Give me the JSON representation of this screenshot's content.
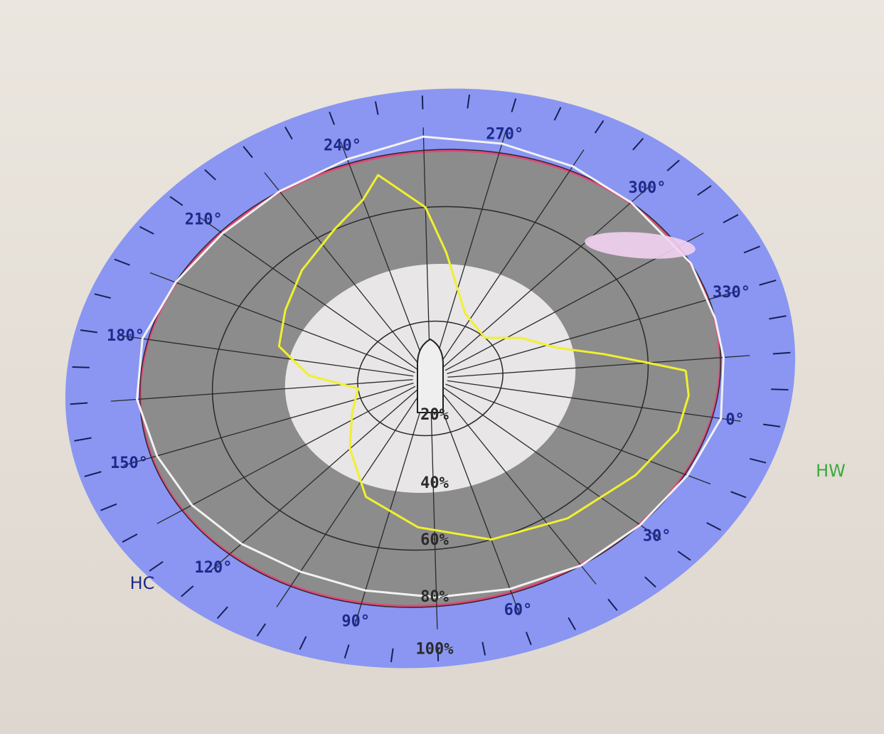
{
  "colors": {
    "background": "#e6e0d8",
    "outer_ring": "#8a96f2",
    "gray_ring": "#8c8c8c",
    "inner_disk": "#e8e6e6",
    "gridline": "#2a2a2a",
    "pink_circle": "#e0487a",
    "white_trace": "#f2f2f2",
    "yellow_trace": "#f0f030",
    "angle_label": "#1d2a8a",
    "hc_label": "#1d2a8a",
    "hw_label": "#3caa3c"
  },
  "angle_labels": [
    {
      "text": "0°",
      "angle": 0
    },
    {
      "text": "30°",
      "angle": 30
    },
    {
      "text": "60°",
      "angle": 60
    },
    {
      "text": "90°",
      "angle": 90
    },
    {
      "text": "120°",
      "angle": 120
    },
    {
      "text": "150°",
      "angle": 150
    },
    {
      "text": "180°",
      "angle": 180
    },
    {
      "text": "210°",
      "angle": 210
    },
    {
      "text": "240°",
      "angle": 240
    },
    {
      "text": "270°",
      "angle": 270
    },
    {
      "text": "300°",
      "angle": 300
    },
    {
      "text": "330°",
      "angle": 330
    }
  ],
  "percent_labels": [
    "20%",
    "40%",
    "60%",
    "80%",
    "100%"
  ],
  "side_labels": {
    "left": "HC",
    "right": "HW"
  },
  "traces": {
    "white": {
      "name": "",
      "points_deg_pct": [
        [
          335,
          100
        ],
        [
          320,
          100
        ],
        [
          300,
          100
        ],
        [
          285,
          102
        ],
        [
          270,
          104
        ],
        [
          255,
          106
        ],
        [
          240,
          102
        ],
        [
          225,
          100
        ],
        [
          210,
          99
        ],
        [
          195,
          100
        ],
        [
          180,
          102
        ],
        [
          165,
          101
        ],
        [
          150,
          98
        ],
        [
          135,
          96
        ],
        [
          120,
          94
        ],
        [
          105,
          93
        ],
        [
          90,
          94
        ],
        [
          75,
          96
        ],
        [
          60,
          98
        ],
        [
          45,
          100
        ],
        [
          30,
          100
        ],
        [
          15,
          101
        ],
        [
          0,
          103
        ],
        [
          345,
          101
        ],
        [
          335,
          100
        ]
      ]
    },
    "yellow": {
      "name": "",
      "points_deg_pct": [
        [
          348,
          88
        ],
        [
          345,
          75
        ],
        [
          340,
          60
        ],
        [
          333,
          45
        ],
        [
          320,
          35
        ],
        [
          305,
          25
        ],
        [
          280,
          30
        ],
        [
          262,
          55
        ],
        [
          255,
          75
        ],
        [
          245,
          92
        ],
        [
          240,
          83
        ],
        [
          230,
          75
        ],
        [
          215,
          67
        ],
        [
          200,
          60
        ],
        [
          185,
          55
        ],
        [
          172,
          42
        ],
        [
          160,
          25
        ],
        [
          140,
          30
        ],
        [
          120,
          40
        ],
        [
          100,
          55
        ],
        [
          80,
          65
        ],
        [
          60,
          75
        ],
        [
          40,
          80
        ],
        [
          20,
          85
        ],
        [
          5,
          90
        ],
        [
          355,
          90
        ],
        [
          348,
          88
        ]
      ]
    }
  },
  "glare": {
    "visible": true
  }
}
